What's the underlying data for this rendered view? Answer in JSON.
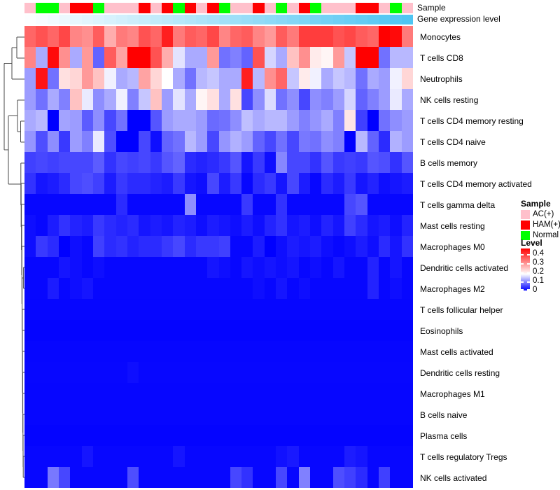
{
  "annotation_labels": {
    "sample": "Sample",
    "gene": "Gene expression level"
  },
  "legend": {
    "sample_title": "Sample",
    "sample_items": [
      {
        "label": "AC(+)",
        "color": "#FFC0CB"
      },
      {
        "label": "HAM(+)",
        "color": "#FF0000"
      },
      {
        "label": "Normal",
        "color": "#00FF00"
      }
    ],
    "level_title": "Level",
    "level_ticks": [
      {
        "label": "0.4",
        "pos": 8
      },
      {
        "label": "0.3",
        "pos": 21
      },
      {
        "label": "0.2",
        "pos": 34
      },
      {
        "label": "0.1",
        "pos": 47
      },
      {
        "label": "0",
        "pos": 60
      }
    ]
  },
  "chart_data": {
    "type": "heatmap",
    "title": "",
    "n_cols": 34,
    "value_range": [
      0,
      0.46
    ],
    "colormap": {
      "low": "#0000FF",
      "mid": "#FFFFFF",
      "high": "#FF0000",
      "mid_value": 0.18,
      "high_value": 0.43
    },
    "rows": [
      "Monocytes",
      "T cells CD8",
      "Neutrophils",
      "NK cells resting",
      "T cells CD4 memory resting",
      "T cells CD4 naive",
      "B cells memory",
      "T cells CD4 memory activated",
      "T cells gamma delta",
      "Mast cells resting",
      "Macrophages M0",
      "Dendritic cells activated",
      "Macrophages M2",
      "T cells follicular helper",
      "Eosinophils",
      "Mast cells activated",
      "Dendritic cells resting",
      "Macrophages M1",
      "B cells naive",
      "Plasma cells",
      "T cells regulatory  Tregs",
      "NK cells activated"
    ],
    "column_annotations": {
      "sample": [
        "AC(+)",
        "Normal",
        "Normal",
        "AC(+)",
        "HAM(+)",
        "HAM(+)",
        "Normal",
        "AC(+)",
        "AC(+)",
        "AC(+)",
        "HAM(+)",
        "AC(+)",
        "HAM(+)",
        "Normal",
        "HAM(+)",
        "AC(+)",
        "HAM(+)",
        "Normal",
        "AC(+)",
        "AC(+)",
        "HAM(+)",
        "AC(+)",
        "Normal",
        "AC(+)",
        "HAM(+)",
        "Normal",
        "AC(+)",
        "AC(+)",
        "AC(+)",
        "HAM(+)",
        "HAM(+)",
        "AC(+)",
        "Normal",
        "AC(+)"
      ],
      "sample_colors": {
        "AC(+)": "#FFC0CB",
        "HAM(+)": "#FF0000",
        "Normal": "#00FF00"
      },
      "gene_expression_level": {
        "gradient_start": "#FCFEFF",
        "gradient_end": "#4EC5F2"
      }
    },
    "values": [
      [
        0.33,
        0.35,
        0.33,
        0.36,
        0.3,
        0.29,
        0.34,
        0.26,
        0.31,
        0.3,
        0.35,
        0.33,
        0.4,
        0.31,
        0.34,
        0.33,
        0.36,
        0.3,
        0.33,
        0.34,
        0.3,
        0.28,
        0.34,
        0.31,
        0.37,
        0.37,
        0.37,
        0.35,
        0.36,
        0.34,
        0.33,
        0.43,
        0.42,
        0.31
      ],
      [
        0.3,
        0.12,
        0.42,
        0.29,
        0.12,
        0.28,
        0.07,
        0.34,
        0.27,
        0.43,
        0.43,
        0.35,
        0.26,
        0.16,
        0.12,
        0.12,
        0.28,
        0.08,
        0.09,
        0.07,
        0.35,
        0.15,
        0.12,
        0.24,
        0.29,
        0.2,
        0.19,
        0.28,
        0.14,
        0.45,
        0.45,
        0.08,
        0.13,
        0.13
      ],
      [
        0.11,
        0.41,
        0.08,
        0.21,
        0.22,
        0.28,
        0.24,
        0.17,
        0.12,
        0.13,
        0.27,
        0.22,
        0.18,
        0.12,
        0.08,
        0.13,
        0.14,
        0.12,
        0.12,
        0.4,
        0.13,
        0.29,
        0.33,
        0.14,
        0.2,
        0.17,
        0.12,
        0.14,
        0.13,
        0.08,
        0.12,
        0.11,
        0.17,
        0.22
      ],
      [
        0.11,
        0.08,
        0.12,
        0.09,
        0.24,
        0.165,
        0.1,
        0.12,
        0.17,
        0.09,
        0.14,
        0.24,
        0.11,
        0.16,
        0.12,
        0.19,
        0.21,
        0.12,
        0.21,
        0.05,
        0.1,
        0.155,
        0.08,
        0.1,
        0.05,
        0.1,
        0.09,
        0.11,
        0.15,
        0.07,
        0.09,
        0.11,
        0.165,
        0.12
      ],
      [
        0.12,
        0.13,
        0.0,
        0.115,
        0.11,
        0.065,
        0.1,
        0.05,
        0.08,
        0.0,
        0.0,
        0.06,
        0.11,
        0.12,
        0.12,
        0.11,
        0.075,
        0.08,
        0.1,
        0.135,
        0.12,
        0.13,
        0.13,
        0.11,
        0.09,
        0.105,
        0.12,
        0.09,
        0.205,
        0.045,
        0.0,
        0.08,
        0.1,
        0.11
      ],
      [
        0.105,
        0.055,
        0.1,
        0.04,
        0.11,
        0.09,
        0.165,
        0.055,
        0.0,
        0.0,
        0.05,
        0.01,
        0.07,
        0.08,
        0.13,
        0.11,
        0.05,
        0.105,
        0.125,
        0.11,
        0.07,
        0.05,
        0.08,
        0.05,
        0.085,
        0.08,
        0.1,
        0.09,
        0.0,
        0.13,
        0.07,
        0.03,
        0.125,
        0.11
      ],
      [
        0.045,
        0.05,
        0.045,
        0.05,
        0.05,
        0.05,
        0.065,
        0.035,
        0.05,
        0.045,
        0.05,
        0.04,
        0.06,
        0.07,
        0.03,
        0.025,
        0.03,
        0.04,
        0.06,
        0.015,
        0.04,
        0.01,
        0.095,
        0.05,
        0.05,
        0.035,
        0.06,
        0.04,
        0.045,
        0.04,
        0.06,
        0.055,
        0.035,
        0.06
      ],
      [
        0.035,
        0.015,
        0.02,
        0.03,
        0.05,
        0.055,
        0.045,
        0.02,
        0.04,
        0.03,
        0.03,
        0.025,
        0.02,
        0.04,
        0.015,
        0.01,
        0.05,
        0.02,
        0.04,
        0.005,
        0.03,
        0.04,
        0.015,
        0.05,
        0.02,
        0.005,
        0.03,
        0.02,
        0.04,
        0.015,
        0.025,
        0.01,
        0.015,
        0.02
      ],
      [
        0.005,
        0.005,
        0.005,
        0.005,
        0.005,
        0.005,
        0.005,
        0.005,
        0.03,
        0.005,
        0.005,
        0.005,
        0.005,
        0.005,
        0.1,
        0.005,
        0.005,
        0.005,
        0.005,
        0.04,
        0.005,
        0.005,
        0.035,
        0.005,
        0.005,
        0.005,
        0.005,
        0.005,
        0.05,
        0.06,
        0.005,
        0.005,
        0.005,
        0.005
      ],
      [
        0.01,
        0.005,
        0.02,
        0.035,
        0.025,
        0.02,
        0.04,
        0.03,
        0.025,
        0.03,
        0.015,
        0.02,
        0.015,
        0.025,
        0.02,
        0.01,
        0.02,
        0.015,
        0.01,
        0.02,
        0.01,
        0.025,
        0.035,
        0.015,
        0.02,
        0.01,
        0.025,
        0.015,
        0.045,
        0.03,
        0.015,
        0.02,
        0.01,
        0.025
      ],
      [
        0.01,
        0.04,
        0.03,
        0.0,
        0.01,
        0.005,
        0.045,
        0.03,
        0.035,
        0.025,
        0.03,
        0.03,
        0.04,
        0.05,
        0.03,
        0.04,
        0.04,
        0.045,
        0.005,
        0.005,
        0.02,
        0.0,
        0.01,
        0.02,
        0.015,
        0.02,
        0.01,
        0.005,
        0.01,
        0.02,
        0.01,
        0.03,
        0.015,
        0.035
      ],
      [
        0.005,
        0.005,
        0.005,
        0.015,
        0.01,
        0.005,
        0.01,
        0.005,
        0.005,
        0.005,
        0.005,
        0.005,
        0.005,
        0.005,
        0.005,
        0.005,
        0.015,
        0.01,
        0.005,
        0.015,
        0.01,
        0.015,
        0.01,
        0.015,
        0.005,
        0.01,
        0.005,
        0.015,
        0.005,
        0.005,
        0.025,
        0.005,
        0.015,
        0.005
      ],
      [
        0.005,
        0.005,
        0.02,
        0.005,
        0.01,
        0.015,
        0.005,
        0.005,
        0.005,
        0.005,
        0.005,
        0.005,
        0.005,
        0.005,
        0.005,
        0.005,
        0.005,
        0.005,
        0.005,
        0.005,
        0.01,
        0.005,
        0.015,
        0.005,
        0.01,
        0.005,
        0.005,
        0.005,
        0.005,
        0.005,
        0.025,
        0.005,
        0.01,
        0.005
      ],
      [
        0.004,
        0.004,
        0.004,
        0.004,
        0.004,
        0.004,
        0.004,
        0.004,
        0.004,
        0.004,
        0.004,
        0.004,
        0.004,
        0.004,
        0.004,
        0.004,
        0.004,
        0.004,
        0.004,
        0.004,
        0.004,
        0.004,
        0.004,
        0.004,
        0.004,
        0.004,
        0.004,
        0.004,
        0.004,
        0.004,
        0.004,
        0.004,
        0.004,
        0.004
      ],
      [
        0.003,
        0.003,
        0.003,
        0.003,
        0.003,
        0.003,
        0.003,
        0.003,
        0.003,
        0.003,
        0.003,
        0.003,
        0.003,
        0.003,
        0.003,
        0.003,
        0.003,
        0.003,
        0.003,
        0.003,
        0.003,
        0.003,
        0.003,
        0.003,
        0.003,
        0.003,
        0.003,
        0.003,
        0.003,
        0.003,
        0.003,
        0.003,
        0.003,
        0.003
      ],
      [
        0.004,
        0.004,
        0.004,
        0.004,
        0.004,
        0.004,
        0.004,
        0.004,
        0.004,
        0.004,
        0.004,
        0.004,
        0.004,
        0.004,
        0.004,
        0.004,
        0.004,
        0.004,
        0.004,
        0.004,
        0.004,
        0.004,
        0.004,
        0.004,
        0.004,
        0.004,
        0.004,
        0.004,
        0.004,
        0.004,
        0.004,
        0.004,
        0.004,
        0.004
      ],
      [
        0.005,
        0.005,
        0.005,
        0.005,
        0.005,
        0.005,
        0.005,
        0.005,
        0.005,
        0.01,
        0.005,
        0.005,
        0.005,
        0.005,
        0.005,
        0.005,
        0.005,
        0.005,
        0.005,
        0.005,
        0.005,
        0.005,
        0.005,
        0.005,
        0.005,
        0.005,
        0.005,
        0.005,
        0.005,
        0.005,
        0.005,
        0.005,
        0.005,
        0.005
      ],
      [
        0.004,
        0.004,
        0.004,
        0.004,
        0.004,
        0.004,
        0.004,
        0.004,
        0.004,
        0.004,
        0.004,
        0.004,
        0.004,
        0.004,
        0.004,
        0.004,
        0.004,
        0.004,
        0.004,
        0.004,
        0.004,
        0.004,
        0.004,
        0.004,
        0.004,
        0.004,
        0.004,
        0.004,
        0.004,
        0.004,
        0.004,
        0.004,
        0.004,
        0.004
      ],
      [
        0.004,
        0.004,
        0.004,
        0.004,
        0.004,
        0.004,
        0.004,
        0.004,
        0.004,
        0.004,
        0.004,
        0.004,
        0.004,
        0.004,
        0.004,
        0.004,
        0.004,
        0.004,
        0.004,
        0.004,
        0.004,
        0.004,
        0.004,
        0.004,
        0.004,
        0.004,
        0.004,
        0.004,
        0.004,
        0.004,
        0.004,
        0.004,
        0.004,
        0.004
      ],
      [
        0.003,
        0.003,
        0.003,
        0.003,
        0.003,
        0.003,
        0.003,
        0.003,
        0.003,
        0.003,
        0.003,
        0.003,
        0.003,
        0.003,
        0.003,
        0.003,
        0.003,
        0.003,
        0.003,
        0.003,
        0.003,
        0.003,
        0.003,
        0.003,
        0.003,
        0.003,
        0.003,
        0.003,
        0.003,
        0.003,
        0.003,
        0.003,
        0.003,
        0.003
      ],
      [
        0.005,
        0.005,
        0.005,
        0.005,
        0.005,
        0.015,
        0.005,
        0.005,
        0.005,
        0.005,
        0.005,
        0.005,
        0.005,
        0.015,
        0.005,
        0.005,
        0.005,
        0.005,
        0.005,
        0.005,
        0.005,
        0.005,
        0.012,
        0.018,
        0.005,
        0.005,
        0.005,
        0.005,
        0.02,
        0.015,
        0.005,
        0.005,
        0.005,
        0.005
      ],
      [
        0.005,
        0.005,
        0.085,
        0.05,
        0.005,
        0.005,
        0.005,
        0.005,
        0.005,
        0.055,
        0.005,
        0.005,
        0.005,
        0.005,
        0.005,
        0.005,
        0.005,
        0.005,
        0.05,
        0.035,
        0.005,
        0.005,
        0.05,
        0.005,
        0.09,
        0.005,
        0.005,
        0.055,
        0.045,
        0.03,
        0.005,
        0.045,
        0.005,
        0.005
      ]
    ],
    "dendrogram_segments": [
      [
        35,
        53,
        24,
        53
      ],
      [
        35,
        83,
        24,
        83
      ],
      [
        24,
        53,
        24,
        83
      ],
      [
        24,
        68,
        17,
        68
      ],
      [
        35,
        113,
        17,
        113
      ],
      [
        17,
        68,
        17,
        113
      ],
      [
        17,
        90.5,
        6,
        90.5
      ],
      [
        35,
        173,
        29.5,
        173
      ],
      [
        35,
        203,
        29.5,
        203
      ],
      [
        29.5,
        173,
        29.5,
        203
      ],
      [
        29.5,
        188,
        25,
        188
      ],
      [
        35,
        143,
        25,
        143
      ],
      [
        25,
        143,
        25,
        188
      ],
      [
        25,
        165.5,
        12,
        165.5
      ],
      [
        35,
        382,
        33.6,
        382
      ],
      [
        35,
        412,
        33.6,
        412
      ],
      [
        33.6,
        382,
        33.6,
        412
      ],
      [
        33.6,
        397,
        31.6,
        397
      ],
      [
        35,
        652,
        33.2,
        652
      ],
      [
        35,
        682,
        33.2,
        682
      ],
      [
        33.2,
        652,
        33.2,
        682
      ],
      [
        33.2,
        667,
        33,
        667
      ],
      [
        35,
        622,
        33,
        622
      ],
      [
        33,
        622,
        33,
        667
      ],
      [
        33,
        644,
        32.8,
        644
      ],
      [
        35,
        592,
        32.8,
        592
      ],
      [
        32.8,
        592,
        32.8,
        644
      ],
      [
        32.8,
        618,
        32.6,
        618
      ],
      [
        35,
        562,
        32.6,
        562
      ],
      [
        32.6,
        562,
        32.6,
        618
      ],
      [
        32.6,
        590,
        32.4,
        590
      ],
      [
        35,
        532,
        32.4,
        532
      ],
      [
        32.4,
        532,
        32.4,
        590
      ],
      [
        32.4,
        561,
        32.2,
        561
      ],
      [
        35,
        502,
        32.2,
        502
      ],
      [
        32.2,
        502,
        32.2,
        561
      ],
      [
        32.2,
        531,
        32,
        531
      ],
      [
        35,
        472,
        32,
        472
      ],
      [
        32,
        472,
        32,
        531
      ],
      [
        32,
        501,
        31.8,
        501
      ],
      [
        35,
        442,
        31.8,
        442
      ],
      [
        31.8,
        442,
        31.8,
        501
      ],
      [
        31.8,
        471,
        31.6,
        471
      ],
      [
        31.6,
        397,
        31.6,
        471
      ],
      [
        31.6,
        434,
        31.3,
        434
      ],
      [
        35,
        352,
        31.3,
        352
      ],
      [
        31.3,
        352,
        31.3,
        434
      ],
      [
        31.3,
        393,
        31,
        393
      ],
      [
        35,
        322,
        31,
        322
      ],
      [
        31,
        322,
        31,
        393
      ],
      [
        31,
        357,
        30.6,
        357
      ],
      [
        35,
        292,
        30.6,
        292
      ],
      [
        30.6,
        292,
        30.6,
        357
      ],
      [
        30.6,
        324,
        30.2,
        324
      ],
      [
        35,
        262,
        30.2,
        262
      ],
      [
        30.2,
        262,
        30.2,
        324
      ],
      [
        30.2,
        293,
        29.8,
        293
      ],
      [
        35,
        233,
        29.8,
        233
      ],
      [
        29.8,
        233,
        29.8,
        293
      ],
      [
        29.8,
        263,
        12,
        263
      ],
      [
        12,
        165.5,
        12,
        263
      ],
      [
        12,
        214,
        6,
        214
      ],
      [
        6,
        90.5,
        6,
        214
      ]
    ]
  }
}
